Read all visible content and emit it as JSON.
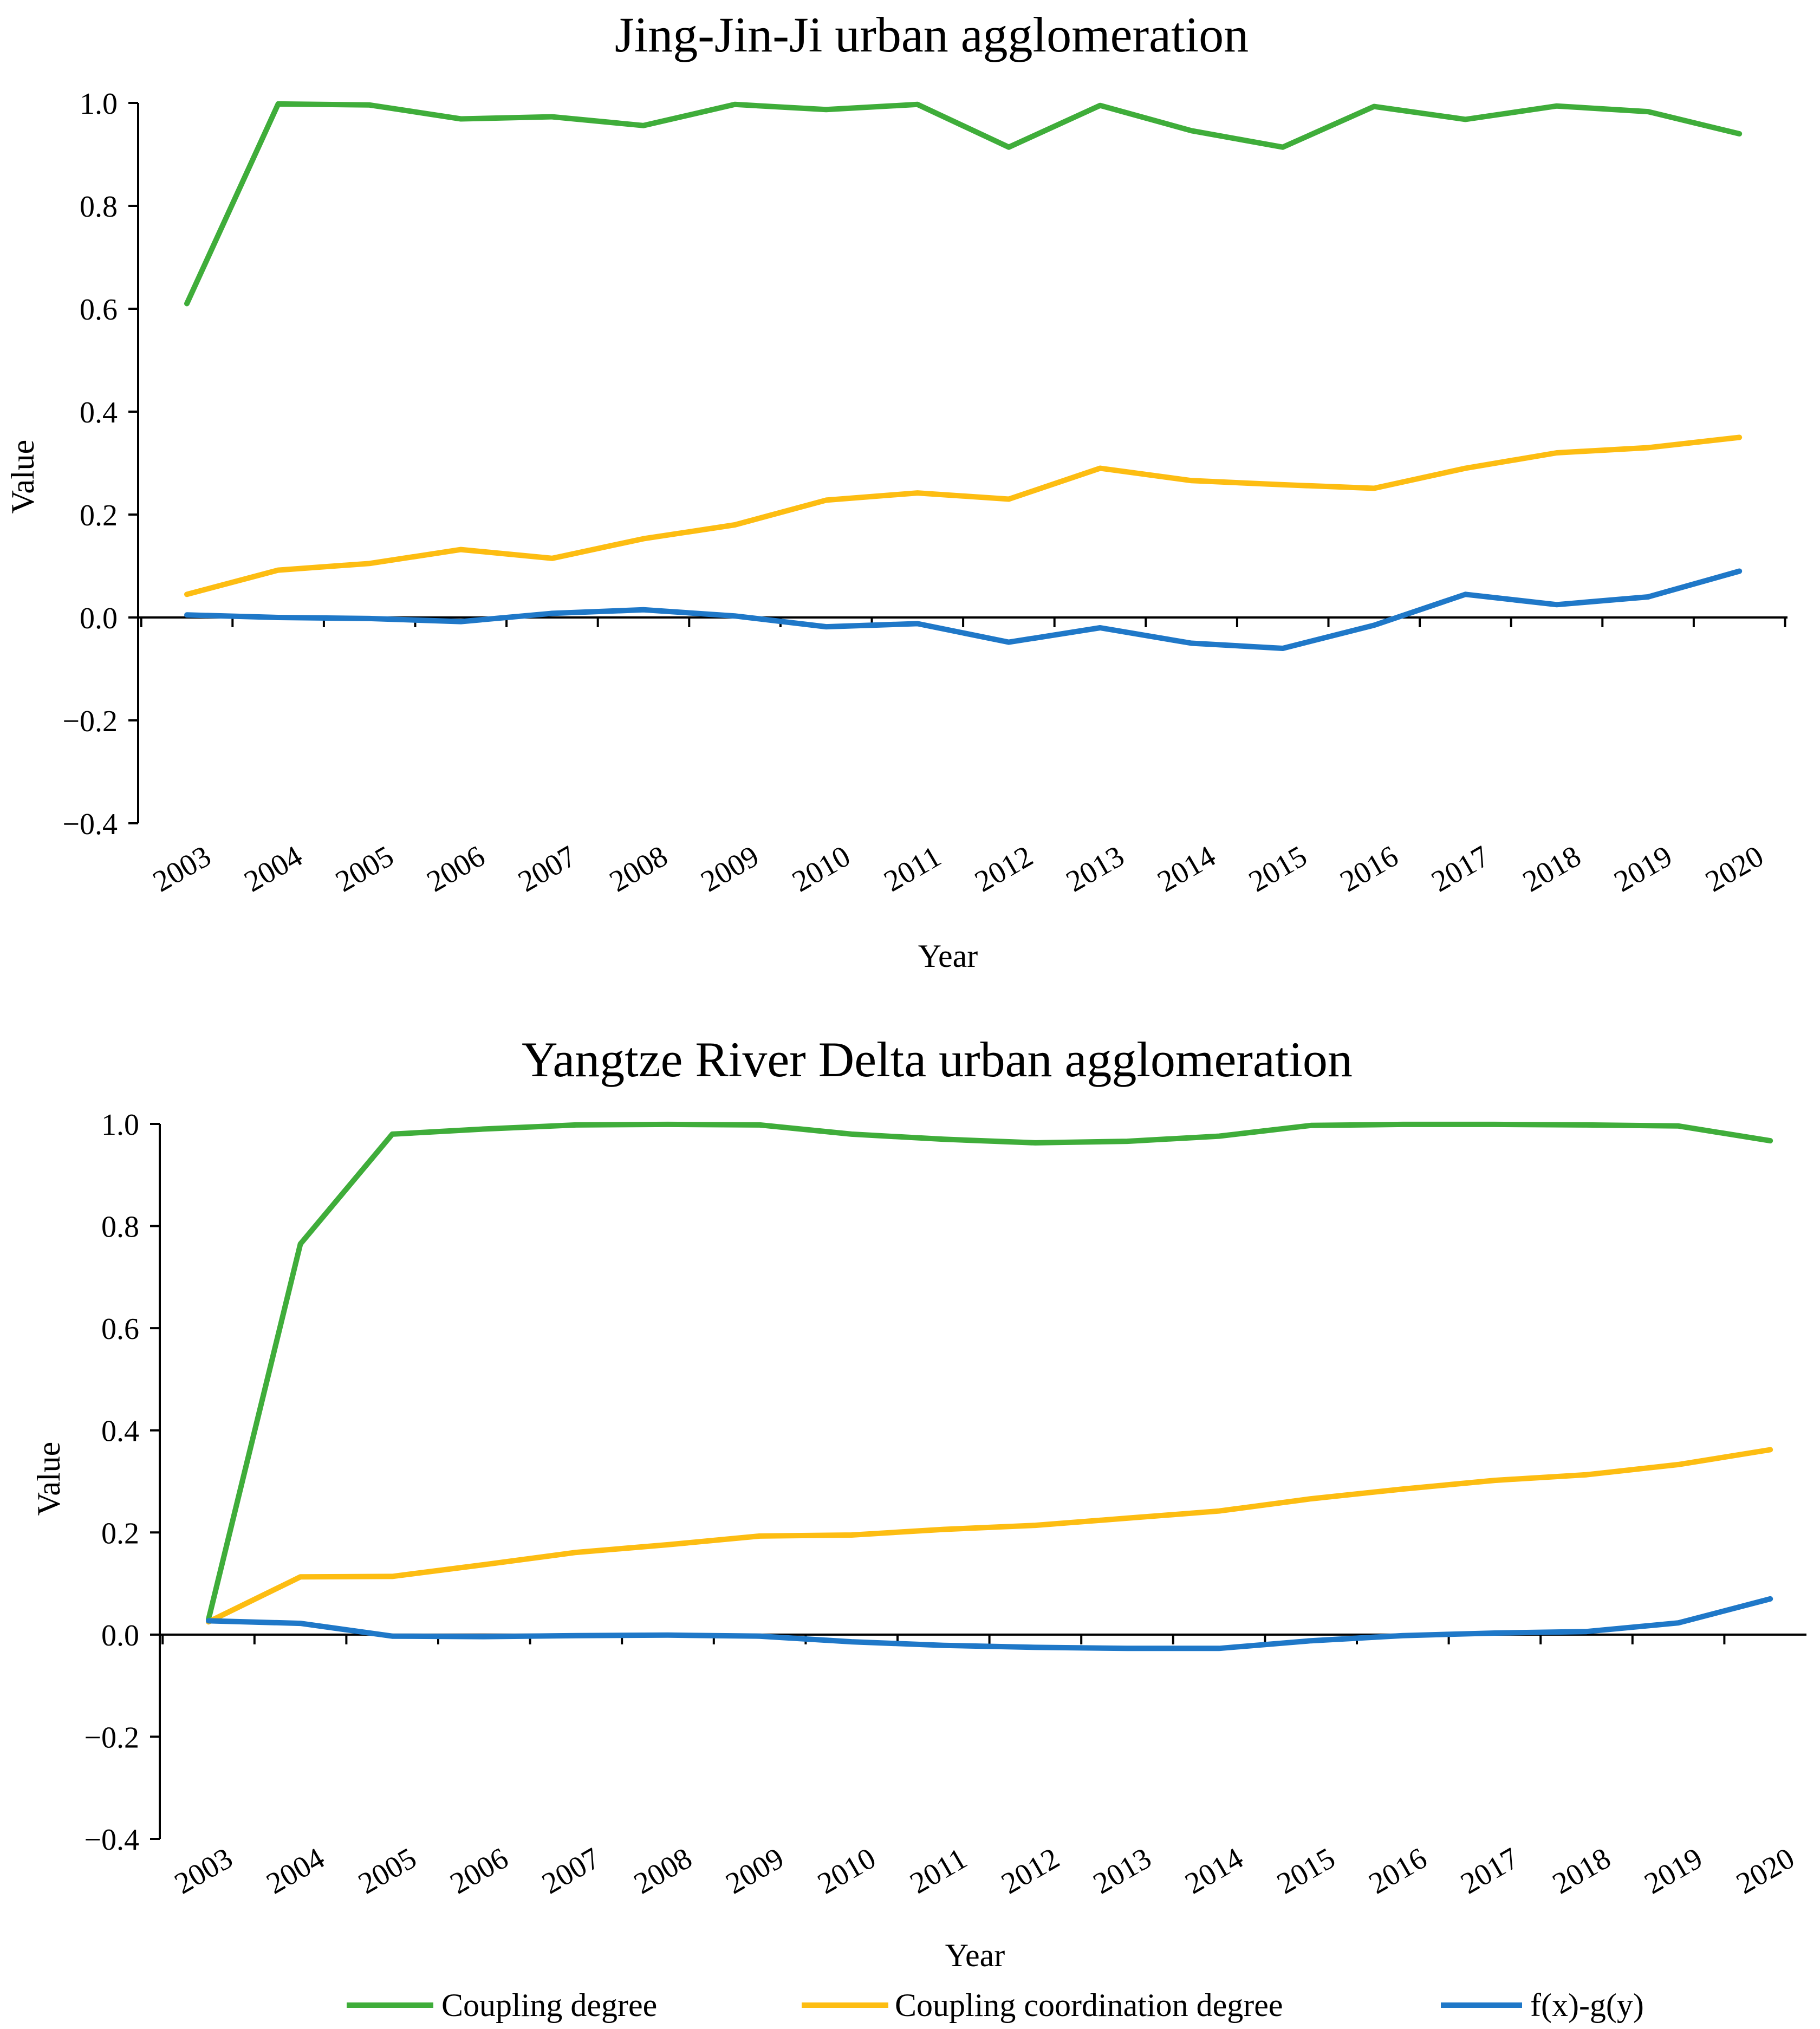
{
  "legend": {
    "items": [
      {
        "label": "Coupling degree",
        "color": "#3fad3a"
      },
      {
        "label": "Coupling coordination degree",
        "color": "#fdbd12"
      },
      {
        "label": "f(x)-g(y)",
        "color": "#1f78c8"
      }
    ]
  },
  "chart_data": [
    {
      "type": "line",
      "title": "Jing-Jin-Ji urban agglomeration",
      "xlabel": "Year",
      "ylabel": "Value",
      "ylim": [
        -0.4,
        1.0
      ],
      "yticks": [
        "1.0",
        "0.8",
        "0.6",
        "0.4",
        "0.2",
        "0.0",
        "−0.2",
        "−0.4"
      ],
      "ytick_values": [
        1.0,
        0.8,
        0.6,
        0.4,
        0.2,
        0.0,
        -0.2,
        -0.4
      ],
      "categories": [
        "2003",
        "2004",
        "2005",
        "2006",
        "2007",
        "2008",
        "2009",
        "2010",
        "2011",
        "2012",
        "2013",
        "2014",
        "2015",
        "2016",
        "2017",
        "2018",
        "2019",
        "2020"
      ],
      "series": [
        {
          "name": "Coupling degree",
          "color": "#3fad3a",
          "values": [
            0.61,
            0.998,
            0.996,
            0.969,
            0.973,
            0.956,
            0.997,
            0.987,
            0.997,
            0.914,
            0.995,
            0.946,
            0.914,
            0.993,
            0.968,
            0.994,
            0.983,
            0.94
          ]
        },
        {
          "name": "Coupling coordination degree",
          "color": "#fdbd12",
          "values": [
            0.045,
            0.092,
            0.105,
            0.132,
            0.115,
            0.153,
            0.18,
            0.228,
            0.242,
            0.23,
            0.29,
            0.266,
            0.258,
            0.251,
            0.29,
            0.32,
            0.33,
            0.35
          ]
        },
        {
          "name": "f(x)-g(y)",
          "color": "#1f78c8",
          "values": [
            0.005,
            0.0,
            -0.002,
            -0.008,
            0.008,
            0.015,
            0.003,
            -0.018,
            -0.012,
            -0.048,
            -0.02,
            -0.05,
            -0.06,
            -0.015,
            0.045,
            0.025,
            0.04,
            0.09
          ]
        }
      ]
    },
    {
      "type": "line",
      "title": "Yangtze River Delta urban agglomeration",
      "xlabel": "Year",
      "ylabel": "Value",
      "ylim": [
        -0.4,
        1.0
      ],
      "yticks": [
        "1.0",
        "0.8",
        "0.6",
        "0.4",
        "0.2",
        "0.0",
        "−0.2",
        "−0.4"
      ],
      "ytick_values": [
        1.0,
        0.8,
        0.6,
        0.4,
        0.2,
        0.0,
        -0.2,
        -0.4
      ],
      "categories": [
        "2003",
        "2004",
        "2005",
        "2006",
        "2007",
        "2008",
        "2009",
        "2010",
        "2011",
        "2012",
        "2013",
        "2014",
        "2015",
        "2016",
        "2017",
        "2018",
        "2019",
        "2020"
      ],
      "series": [
        {
          "name": "Coupling degree",
          "color": "#3fad3a",
          "values": [
            0.03,
            0.765,
            0.98,
            0.99,
            0.998,
            0.999,
            0.998,
            0.98,
            0.97,
            0.963,
            0.966,
            0.976,
            0.997,
            0.999,
            0.999,
            0.998,
            0.996,
            0.967
          ]
        },
        {
          "name": "Coupling coordination degree",
          "color": "#fdbd12",
          "values": [
            0.025,
            0.113,
            0.114,
            0.137,
            0.161,
            0.176,
            0.193,
            0.195,
            0.206,
            0.214,
            0.228,
            0.242,
            0.266,
            0.285,
            0.302,
            0.313,
            0.333,
            0.362
          ]
        },
        {
          "name": "f(x)-g(y)",
          "color": "#1f78c8",
          "values": [
            0.027,
            0.022,
            -0.003,
            -0.004,
            -0.002,
            -0.001,
            -0.003,
            -0.014,
            -0.021,
            -0.025,
            -0.027,
            -0.027,
            -0.012,
            -0.002,
            0.003,
            0.006,
            0.023,
            0.07
          ]
        }
      ]
    }
  ]
}
